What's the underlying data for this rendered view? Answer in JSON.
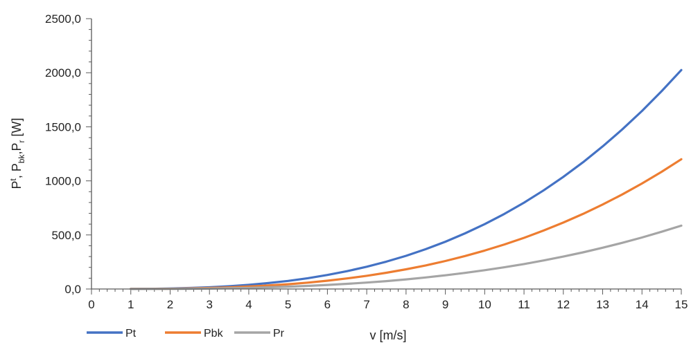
{
  "chart_data": {
    "type": "line",
    "title": "",
    "xlabel_main": "v ",
    "xlabel_unit": "[m/s]",
    "ylabel": {
      "P": "P",
      "t_sup": "t",
      "sep1": ", P",
      "bk_sub": "bk",
      "sep2": ",P",
      "r_sub": "r",
      "unit": " [W]"
    },
    "xlim": [
      0,
      15
    ],
    "ylim": [
      0,
      2500
    ],
    "x_ticks": [
      "0",
      "1",
      "2",
      "3",
      "4",
      "5",
      "6",
      "7",
      "8",
      "9",
      "10",
      "11",
      "12",
      "13",
      "14",
      "15"
    ],
    "y_ticks": [
      "0,0",
      "500,0",
      "1000,0",
      "1500,0",
      "2000,0",
      "2500,0"
    ],
    "grid": false,
    "legend_position": "bottom-left",
    "x": [
      1,
      1.5,
      2,
      2.5,
      3,
      3.5,
      4,
      4.5,
      5,
      5.5,
      6,
      6.5,
      7,
      7.5,
      8,
      8.5,
      9,
      9.5,
      10,
      10.5,
      11,
      11.5,
      12,
      12.5,
      13,
      13.5,
      14,
      14.5,
      15
    ],
    "series": [
      {
        "name": "Pt",
        "color": "#4472C4",
        "values": [
          0.6,
          2.0,
          4.8,
          9.4,
          16.2,
          25.7,
          38.4,
          54.7,
          75.0,
          99.8,
          129.6,
          164.8,
          205.8,
          253.1,
          307.2,
          368.4,
          437.4,
          514.4,
          600.0,
          694.6,
          798.6,
          912.5,
          1036.8,
          1171.9,
          1318.2,
          1476.2,
          1646.4,
          1829.2,
          2025.0
        ]
      },
      {
        "name": "Pbk",
        "color": "#ED7D31",
        "values": [
          0.4,
          1.2,
          2.8,
          5.6,
          9.6,
          15.2,
          22.7,
          32.4,
          44.4,
          59.1,
          76.8,
          97.6,
          121.9,
          150.0,
          182.0,
          218.3,
          259.2,
          304.8,
          355.6,
          411.6,
          473.3,
          540.8,
          614.4,
          694.4,
          781.2,
          874.8,
          975.7,
          1084.0,
          1200.0
        ]
      },
      {
        "name": "Pr",
        "color": "#A5A5A5",
        "values": [
          0.2,
          0.6,
          1.4,
          2.7,
          4.7,
          7.4,
          11.1,
          15.8,
          21.7,
          28.8,
          37.5,
          47.7,
          59.5,
          73.2,
          88.9,
          106.6,
          126.5,
          148.8,
          173.6,
          200.9,
          231.1,
          264.0,
          300.0,
          339.0,
          381.5,
          427.2,
          476.4,
          529.3,
          585.9
        ]
      }
    ]
  }
}
